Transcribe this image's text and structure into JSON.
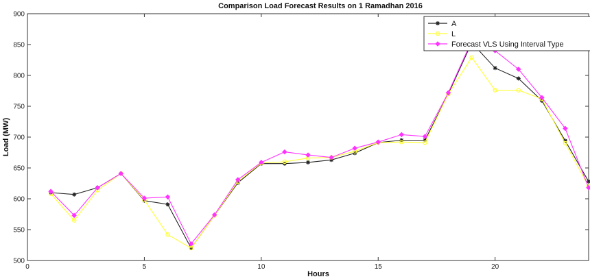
{
  "chart_data": {
    "type": "line",
    "title": "Comparison Load Forecast Results on 1 Ramadhan 2016",
    "xlabel": "Hours",
    "ylabel": "Load (MW)",
    "xlim": [
      0,
      24
    ],
    "ylim": [
      500,
      900
    ],
    "xticks": [
      0,
      5,
      10,
      15,
      20
    ],
    "yticks": [
      500,
      550,
      600,
      650,
      700,
      750,
      800,
      850,
      900
    ],
    "grid": false,
    "legend_position": "top-right",
    "x": [
      1,
      2,
      3,
      4,
      5,
      6,
      7,
      8,
      9,
      10,
      11,
      12,
      13,
      14,
      15,
      16,
      17,
      18,
      19,
      20,
      21,
      22,
      23,
      24
    ],
    "series": [
      {
        "name": "A",
        "color": "#222222",
        "marker": "star",
        "values": [
          610,
          607,
          618,
          641,
          597,
          591,
          520,
          573,
          626,
          657,
          657,
          659,
          663,
          674,
          691,
          695,
          695,
          770,
          853,
          812,
          795,
          759,
          694,
          628
        ]
      },
      {
        "name": "L",
        "color": "#ffff33",
        "marker": "circle",
        "values": [
          608,
          565,
          614,
          641,
          598,
          542,
          520,
          573,
          628,
          658,
          660,
          666,
          667,
          677,
          691,
          692,
          691,
          770,
          829,
          776,
          776,
          762,
          690,
          620
        ]
      },
      {
        "name": "Forecast VLS Using Interval Type",
        "color": "#ff33ff",
        "marker": "diamond",
        "values": [
          612,
          573,
          618,
          641,
          601,
          603,
          527,
          574,
          631,
          659,
          676,
          671,
          667,
          682,
          692,
          704,
          701,
          772,
          856,
          840,
          810,
          764,
          714,
          618
        ]
      }
    ]
  }
}
